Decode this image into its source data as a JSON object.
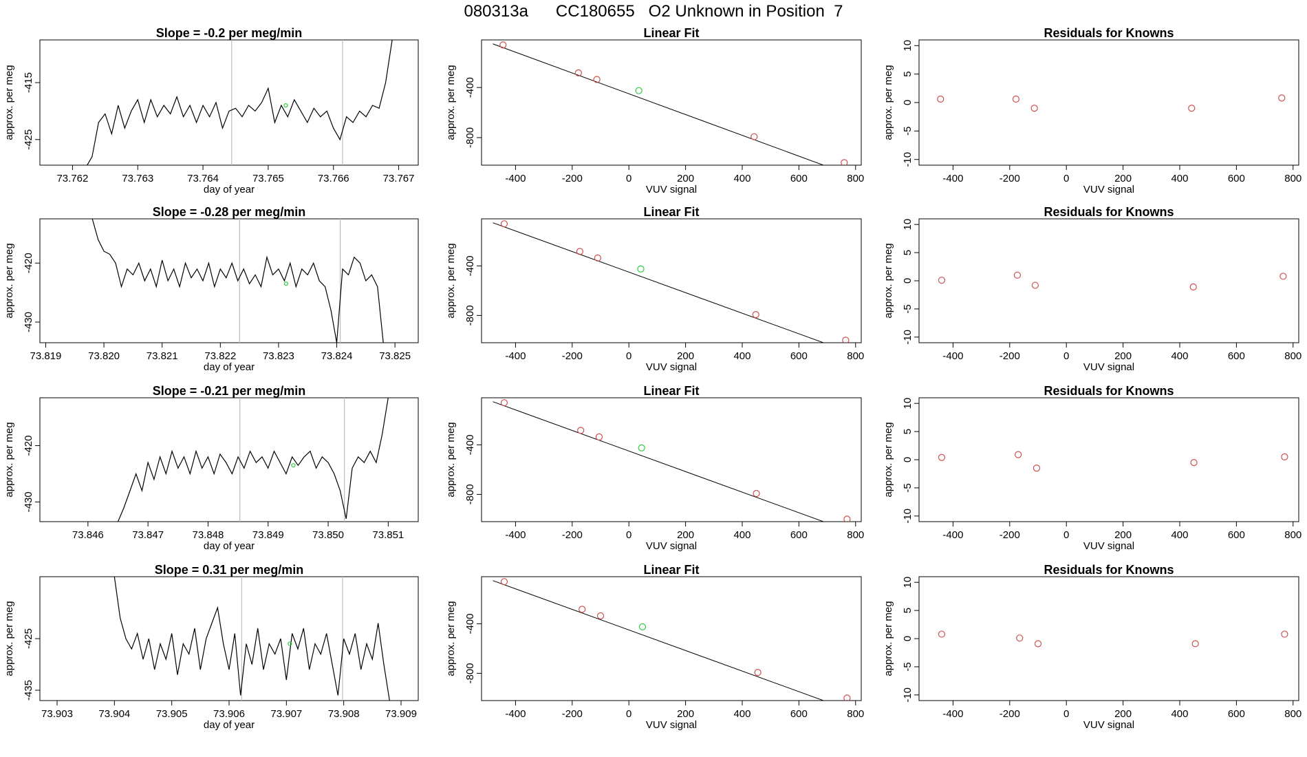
{
  "page": {
    "title": "080313a      CC180655   O2 Unknown in Position  7"
  },
  "colors": {
    "axis": "#000000",
    "trace": "#000000",
    "known_point": "#cd4f4f",
    "unknown_point": "#2ecc40",
    "vertical_marker": "#bdbdbd"
  },
  "chart_data": [
    {
      "id": "r1-timeseries",
      "type": "line",
      "title": "Slope =  -0.2  per meg/min",
      "xlabel": "day of year",
      "ylabel": "approx. per meg",
      "xlim": [
        73.7615,
        73.7673
      ],
      "ylim": [
        -429.5,
        -407.5
      ],
      "xticks": [
        "73.762",
        "73.763",
        "73.764",
        "73.765",
        "73.766",
        "73.767"
      ],
      "yticks": [
        "-425",
        "-415"
      ],
      "vlines": [
        73.76444,
        73.76614
      ],
      "unknown_point": [
        73.76527,
        -419
      ],
      "series": [
        {
          "x": [
            73.7622,
            73.7623,
            73.7624,
            73.7625,
            73.7626,
            73.7627,
            73.7628,
            73.7629,
            73.763,
            73.7631,
            73.7632,
            73.7633,
            73.7634,
            73.7635,
            73.7636,
            73.7637,
            73.7638,
            73.7639,
            73.764,
            73.7641,
            73.7642,
            73.7643,
            73.7644,
            73.7645,
            73.7646,
            73.7647,
            73.7648,
            73.7649,
            73.765,
            73.7651,
            73.7652,
            73.7653,
            73.7654,
            73.7655,
            73.7656,
            73.7657,
            73.7658,
            73.7659,
            73.766,
            73.7661,
            73.7662,
            73.7663,
            73.7664,
            73.7665,
            73.7666,
            73.7667,
            73.7668,
            73.7669
          ],
          "y": [
            -430,
            -428,
            -422,
            -420.5,
            -424,
            -419,
            -423,
            -420,
            -418,
            -422,
            -418,
            -421,
            -419,
            -420.5,
            -417.5,
            -421,
            -419,
            -422,
            -419,
            -421,
            -418.5,
            -423,
            -420,
            -419.5,
            -421,
            -419,
            -420,
            -418.5,
            -416,
            -422,
            -419,
            -421,
            -418,
            -420,
            -422,
            -419.5,
            -421,
            -420,
            -423,
            -425,
            -421,
            -422,
            -420,
            -421,
            -419,
            -419.5,
            -415,
            -407.5
          ]
        }
      ]
    },
    {
      "id": "r1-linearfit",
      "type": "scatter",
      "title": "Linear Fit",
      "xlabel": "VUV signal",
      "ylabel": "approx. per meg",
      "xlim": [
        -520,
        820
      ],
      "ylim": [
        -1020,
        -20
      ],
      "xticks": [
        "-400",
        "-200",
        "0",
        "200",
        "400",
        "600",
        "800"
      ],
      "yticks": [
        "-800",
        "-400"
      ],
      "known_x": [
        -444,
        -178,
        -113,
        442,
        760
      ],
      "known_y": [
        -60,
        -283,
        -336,
        -793,
        -1000
      ],
      "unknown_point": [
        35,
        -425
      ],
      "fit_line": {
        "slope": -0.83,
        "intercept": -450
      }
    },
    {
      "id": "r1-residuals",
      "type": "scatter",
      "title": "Residuals for Knowns",
      "xlabel": "VUV signal",
      "ylabel": "approx. per meg",
      "xlim": [
        -520,
        820
      ],
      "ylim": [
        -11,
        11
      ],
      "xticks": [
        "-400",
        "-200",
        "0",
        "200",
        "400",
        "600",
        "800"
      ],
      "yticks": [
        "-10",
        "-5",
        "0",
        "5",
        "10"
      ],
      "known_x": [
        -444,
        -178,
        -113,
        442,
        760
      ],
      "known_y": [
        0.6,
        0.6,
        -1.0,
        -1.0,
        0.8
      ]
    },
    {
      "id": "r2-timeseries",
      "type": "line",
      "title": "Slope =  -0.28  per meg/min",
      "xlabel": "day of year",
      "ylabel": "approx. per meg",
      "xlim": [
        73.8189,
        73.8254
      ],
      "ylim": [
        -433.5,
        -412.5
      ],
      "xticks": [
        "73.819",
        "73.820",
        "73.821",
        "73.822",
        "73.823",
        "73.824",
        "73.825"
      ],
      "yticks": [
        "-430",
        "-420"
      ],
      "vlines": [
        73.82233,
        73.82406
      ],
      "unknown_point": [
        73.82313,
        -423.5
      ],
      "series": [
        {
          "x": [
            73.8198,
            73.8199,
            73.82,
            73.8201,
            73.8202,
            73.8203,
            73.8204,
            73.8205,
            73.8206,
            73.8207,
            73.8208,
            73.8209,
            73.821,
            73.8211,
            73.8212,
            73.8213,
            73.8214,
            73.8215,
            73.8216,
            73.8217,
            73.8218,
            73.8219,
            73.822,
            73.8221,
            73.8222,
            73.8223,
            73.8224,
            73.8225,
            73.8226,
            73.8227,
            73.8228,
            73.8229,
            73.823,
            73.8231,
            73.8232,
            73.8233,
            73.8234,
            73.8235,
            73.8236,
            73.8237,
            73.8238,
            73.8239,
            73.824,
            73.8241,
            73.8242,
            73.8243,
            73.8244,
            73.8245,
            73.8246,
            73.8247,
            73.8248
          ],
          "y": [
            -412.5,
            -416,
            -418,
            -418.5,
            -420,
            -424,
            -421,
            -422,
            -420,
            -423,
            -421,
            -424,
            -419.5,
            -423,
            -421,
            -424,
            -420,
            -422.5,
            -421,
            -423,
            -420,
            -424,
            -421,
            -422.5,
            -420,
            -423,
            -421,
            -423.5,
            -422,
            -424,
            -419,
            -422,
            -421,
            -423,
            -420,
            -424,
            -421,
            -422,
            -420,
            -423,
            -424,
            -428,
            -433.5,
            -421,
            -422,
            -419,
            -420,
            -423,
            -422,
            -424,
            -433.5
          ]
        }
      ]
    },
    {
      "id": "r2-linearfit",
      "type": "scatter",
      "title": "Linear Fit",
      "xlabel": "VUV signal",
      "ylabel": "approx. per meg",
      "xlim": [
        -520,
        820
      ],
      "ylim": [
        -1020,
        -20
      ],
      "xticks": [
        "-400",
        "-200",
        "0",
        "200",
        "400",
        "600",
        "800"
      ],
      "yticks": [
        "-800",
        "-400"
      ],
      "known_x": [
        -440,
        -173,
        -110,
        448,
        765
      ],
      "known_y": [
        -60,
        -283,
        -336,
        -793,
        -1000
      ],
      "unknown_point": [
        42,
        -425
      ],
      "fit_line": {
        "slope": -0.83,
        "intercept": -450
      }
    },
    {
      "id": "r2-residuals",
      "type": "scatter",
      "title": "Residuals for Knowns",
      "xlabel": "VUV signal",
      "ylabel": "approx. per meg",
      "xlim": [
        -520,
        820
      ],
      "ylim": [
        -11,
        11
      ],
      "xticks": [
        "-400",
        "-200",
        "0",
        "200",
        "400",
        "600",
        "800"
      ],
      "yticks": [
        "-10",
        "-5",
        "0",
        "5",
        "10"
      ],
      "known_x": [
        -440,
        -173,
        -110,
        448,
        765
      ],
      "known_y": [
        0.1,
        1.0,
        -0.8,
        -1.1,
        0.8
      ]
    },
    {
      "id": "r3-timeseries",
      "type": "line",
      "title": "Slope =  -0.21  per meg/min",
      "xlabel": "day of year",
      "ylabel": "approx. per meg",
      "xlim": [
        73.8452,
        73.8515
      ],
      "ylim": [
        -433.5,
        -411.5
      ],
      "xticks": [
        "73.846",
        "73.847",
        "73.848",
        "73.849",
        "73.850",
        "73.851"
      ],
      "yticks": [
        "-430",
        "-420"
      ],
      "vlines": [
        73.84853,
        73.85027
      ],
      "unknown_point": [
        73.84942,
        -423.5
      ],
      "series": [
        {
          "x": [
            73.8465,
            73.8466,
            73.8467,
            73.8468,
            73.8469,
            73.847,
            73.8471,
            73.8472,
            73.8473,
            73.8474,
            73.8475,
            73.8476,
            73.8477,
            73.8478,
            73.8479,
            73.848,
            73.8481,
            73.8482,
            73.8483,
            73.8484,
            73.8485,
            73.8486,
            73.8487,
            73.8488,
            73.8489,
            73.849,
            73.8491,
            73.8492,
            73.8493,
            73.8494,
            73.8495,
            73.8496,
            73.8497,
            73.8498,
            73.8499,
            73.85,
            73.8501,
            73.8502,
            73.8503,
            73.8504,
            73.8505,
            73.8506,
            73.8507,
            73.8508,
            73.8509,
            73.851
          ],
          "y": [
            -433.5,
            -431,
            -428,
            -425,
            -428,
            -423,
            -426,
            -422,
            -425,
            -421,
            -424,
            -422,
            -425,
            -421,
            -424,
            -422,
            -425,
            -421.5,
            -423,
            -425,
            -422,
            -424,
            -421,
            -423,
            -422,
            -424,
            -421,
            -423,
            -425,
            -422,
            -423.5,
            -422,
            -421,
            -424,
            -422,
            -423,
            -425,
            -428,
            -433,
            -424,
            -422,
            -423,
            -421,
            -423,
            -418,
            -411.5
          ]
        }
      ]
    },
    {
      "id": "r3-linearfit",
      "type": "scatter",
      "title": "Linear Fit",
      "xlabel": "VUV signal",
      "ylabel": "approx. per meg",
      "xlim": [
        -520,
        820
      ],
      "ylim": [
        -1020,
        -20
      ],
      "xticks": [
        "-400",
        "-200",
        "0",
        "200",
        "400",
        "600",
        "800"
      ],
      "yticks": [
        "-800",
        "-400"
      ],
      "known_x": [
        -440,
        -170,
        -105,
        450,
        770
      ],
      "known_y": [
        -60,
        -283,
        -336,
        -793,
        -1000
      ],
      "unknown_point": [
        45,
        -425
      ],
      "fit_line": {
        "slope": -0.83,
        "intercept": -450
      }
    },
    {
      "id": "r3-residuals",
      "type": "scatter",
      "title": "Residuals for Knowns",
      "xlabel": "VUV signal",
      "ylabel": "approx. per meg",
      "xlim": [
        -520,
        820
      ],
      "ylim": [
        -11,
        11
      ],
      "xticks": [
        "-400",
        "-200",
        "0",
        "200",
        "400",
        "600",
        "800"
      ],
      "yticks": [
        "-10",
        "-5",
        "0",
        "5",
        "10"
      ],
      "known_x": [
        -440,
        -170,
        -105,
        450,
        770
      ],
      "known_y": [
        0.4,
        0.9,
        -1.5,
        -0.5,
        0.5
      ]
    },
    {
      "id": "r4-timeseries",
      "type": "line",
      "title": "Slope =  0.31  per meg/min",
      "xlabel": "day of year",
      "ylabel": "approx. per meg",
      "xlim": [
        73.9027,
        73.9093
      ],
      "ylim": [
        -437,
        -413
      ],
      "xticks": [
        "73.903",
        "73.904",
        "73.905",
        "73.906",
        "73.907",
        "73.908",
        "73.909"
      ],
      "yticks": [
        "-435",
        "-425"
      ],
      "vlines": [
        73.90622,
        73.90798
      ],
      "unknown_point": [
        73.90706,
        -426
      ],
      "series": [
        {
          "x": [
            73.904,
            73.9041,
            73.9042,
            73.9043,
            73.9044,
            73.9045,
            73.9046,
            73.9047,
            73.9048,
            73.9049,
            73.905,
            73.9051,
            73.9052,
            73.9053,
            73.9054,
            73.9055,
            73.9056,
            73.9057,
            73.9058,
            73.9059,
            73.906,
            73.9061,
            73.9062,
            73.9063,
            73.9064,
            73.9065,
            73.9066,
            73.9067,
            73.9068,
            73.9069,
            73.907,
            73.9071,
            73.9072,
            73.9073,
            73.9074,
            73.9075,
            73.9076,
            73.9077,
            73.9078,
            73.9079,
            73.908,
            73.9081,
            73.9082,
            73.9083,
            73.9084,
            73.9085,
            73.9086,
            73.9087,
            73.9088
          ],
          "y": [
            -413,
            -421,
            -425,
            -427,
            -424,
            -429,
            -425,
            -431,
            -426,
            -429,
            -424,
            -432,
            -426,
            -428,
            -423,
            -431,
            -425,
            -422,
            -419,
            -426,
            -431,
            -424,
            -436,
            -426,
            -430,
            -423,
            -431,
            -426,
            -428,
            -425,
            -433,
            -424,
            -427,
            -423,
            -431,
            -426,
            -428,
            -424,
            -430,
            -436,
            -425,
            -428,
            -424,
            -431,
            -426,
            -429,
            -422,
            -430,
            -437
          ]
        }
      ]
    },
    {
      "id": "r4-linearfit",
      "type": "scatter",
      "title": "Linear Fit",
      "xlabel": "VUV signal",
      "ylabel": "approx. per meg",
      "xlim": [
        -520,
        820
      ],
      "ylim": [
        -1020,
        -20
      ],
      "xticks": [
        "-400",
        "-200",
        "0",
        "200",
        "400",
        "600",
        "800"
      ],
      "yticks": [
        "-800",
        "-400"
      ],
      "known_x": [
        -440,
        -165,
        -100,
        455,
        770
      ],
      "known_y": [
        -60,
        -283,
        -336,
        -793,
        -1000
      ],
      "unknown_point": [
        48,
        -425
      ],
      "fit_line": {
        "slope": -0.83,
        "intercept": -450
      }
    },
    {
      "id": "r4-residuals",
      "type": "scatter",
      "title": "Residuals for Knowns",
      "xlabel": "VUV signal",
      "ylabel": "approx. per meg",
      "xlim": [
        -520,
        820
      ],
      "ylim": [
        -11,
        11
      ],
      "xticks": [
        "-400",
        "-200",
        "0",
        "200",
        "400",
        "600",
        "800"
      ],
      "yticks": [
        "-10",
        "-5",
        "0",
        "5",
        "10"
      ],
      "known_x": [
        -440,
        -165,
        -100,
        455,
        770
      ],
      "known_y": [
        0.8,
        0.1,
        -0.9,
        -0.9,
        0.8
      ]
    }
  ]
}
